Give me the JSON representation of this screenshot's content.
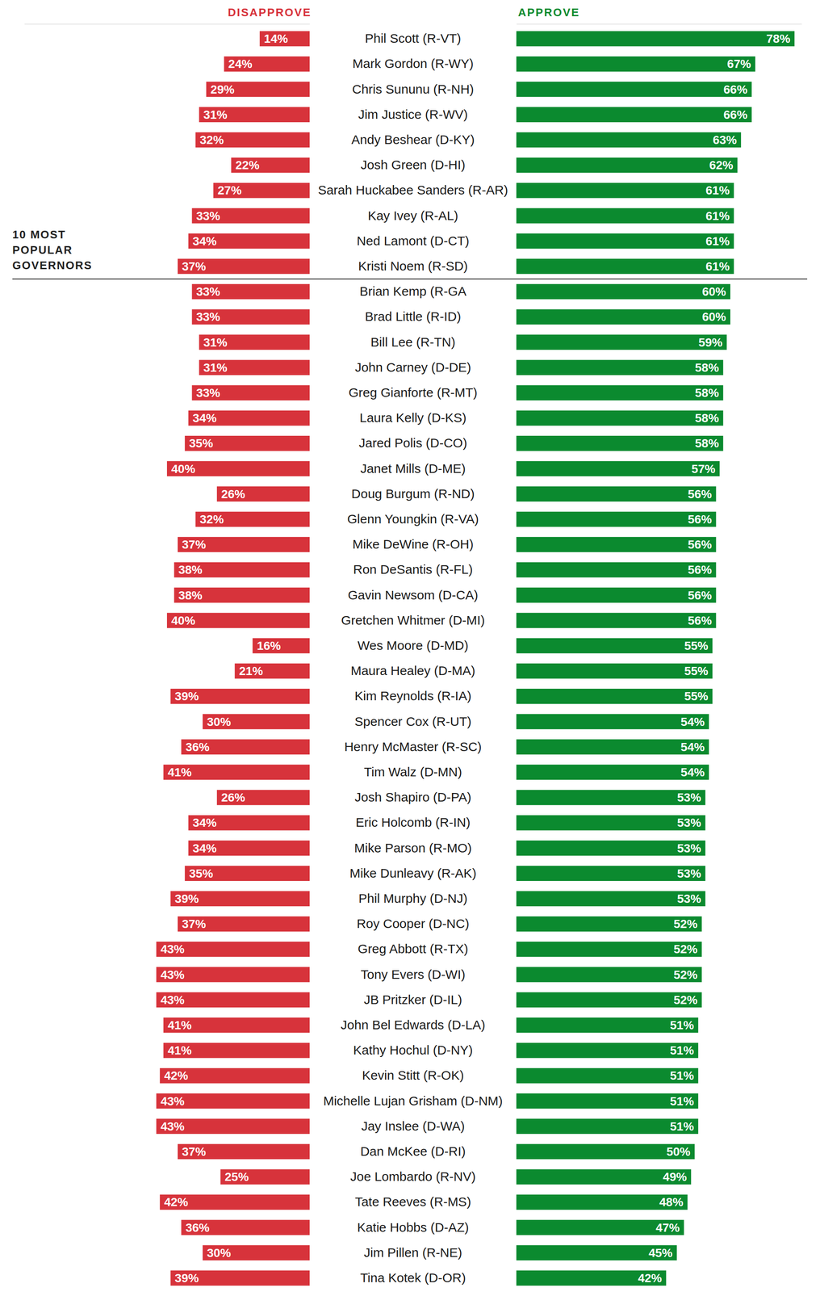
{
  "chart_data": {
    "type": "bar",
    "orientation": "horizontal",
    "data_labels": true,
    "tick_labels": "y",
    "grid": false,
    "annotation": [
      "10 MOST",
      "POPULAR",
      "GOVERNORS"
    ],
    "xlim": [
      0,
      80
    ],
    "xticks": [],
    "categories": [
      "Phil Scott (R-VT)",
      "Mark Gordon (R-WY)",
      "Chris Sununu (R-NH)",
      "Jim Justice (R-WV)",
      "Andy Beshear (D-KY)",
      "Josh Green (D-HI)",
      "Sarah Huckabee Sanders (R-AR)",
      "Kay Ivey (R-AL)",
      "Ned Lamont (D-CT)",
      "Kristi Noem (R-SD)",
      "Brian Kemp (R-GA",
      "Brad Little (R-ID)",
      "Bill Lee (R-TN)",
      "John Carney (D-DE)",
      "Greg Gianforte (R-MT)",
      "Laura Kelly (D-KS)",
      "Jared Polis (D-CO)",
      "Janet Mills (D-ME)",
      "Doug Burgum (R-ND)",
      "Glenn Youngkin (R-VA)",
      "Mike DeWine (R-OH)",
      "Ron DeSantis (R-FL)",
      "Gavin Newsom (D-CA)",
      "Gretchen Whitmer (D-MI)",
      "Wes Moore (D-MD)",
      "Maura Healey (D-MA)",
      "Kim Reynolds (R-IA)",
      "Spencer Cox (R-UT)",
      "Henry McMaster (R-SC)",
      "Tim Walz (D-MN)",
      "Josh Shapiro (D-PA)",
      "Eric Holcomb (R-IN)",
      "Mike Parson (R-MO)",
      "Mike Dunleavy (R-AK)",
      "Phil Murphy (D-NJ)",
      "Roy Cooper (D-NC)",
      "Greg Abbott (R-TX)",
      "Tony Evers (D-WI)",
      "JB Pritzker (D-IL)",
      "John Bel Edwards (D-LA)",
      "Kathy Hochul (D-NY)",
      "Kevin Stitt (R-OK)",
      "Michelle Lujan Grisham (D-NM)",
      "Jay Inslee (D-WA)",
      "Dan McKee (D-RI)",
      "Joe Lombardo (R-NV)",
      "Tate Reeves (R-MS)",
      "Katie Hobbs (D-AZ)",
      "Jim Pillen (R-NE)",
      "Tina Kotek (D-OR)"
    ],
    "series": [
      {
        "name": "DISAPPROVE",
        "color": "#d7333b",
        "values": [
          14,
          24,
          29,
          31,
          32,
          22,
          27,
          33,
          34,
          37,
          33,
          33,
          31,
          31,
          33,
          34,
          35,
          40,
          26,
          32,
          37,
          38,
          38,
          40,
          16,
          21,
          39,
          30,
          36,
          41,
          26,
          34,
          34,
          35,
          39,
          37,
          43,
          43,
          43,
          41,
          41,
          42,
          43,
          43,
          37,
          25,
          42,
          36,
          30,
          39
        ],
        "value_labels": [
          "14%",
          "24%",
          "29%",
          "31%",
          "32%",
          "22%",
          "27%",
          "33%",
          "34%",
          "37%",
          "33%",
          "33%",
          "31%",
          "31%",
          "33%",
          "34%",
          "35%",
          "40%",
          "26%",
          "32%",
          "37%",
          "38%",
          "38%",
          "40%",
          "16%",
          "21%",
          "39%",
          "30%",
          "36%",
          "41%",
          "26%",
          "34%",
          "34%",
          "35%",
          "39%",
          "37%",
          "43%",
          "43%",
          "43%",
          "41%",
          "41%",
          "42%",
          "43%",
          "43%",
          "37%",
          "25%",
          "42%",
          "36%",
          "30%",
          "39%"
        ]
      },
      {
        "name": "APPROVE",
        "color": "#0b8a2f",
        "values": [
          78,
          67,
          66,
          66,
          63,
          62,
          61,
          61,
          61,
          61,
          60,
          60,
          59,
          58,
          58,
          58,
          58,
          57,
          56,
          56,
          56,
          56,
          56,
          56,
          55,
          55,
          55,
          54,
          54,
          54,
          53,
          53,
          53,
          53,
          53,
          52,
          52,
          52,
          52,
          51,
          51,
          51,
          51,
          51,
          50,
          49,
          48,
          47,
          45,
          42
        ],
        "value_labels": [
          "78%",
          "67%",
          "66%",
          "66%",
          "63%",
          "62%",
          "61%",
          "61%",
          "61%",
          "61%",
          "60%",
          "60%",
          "59%",
          "58%",
          "58%",
          "58%",
          "58%",
          "57%",
          "56%",
          "56%",
          "56%",
          "56%",
          "56%",
          "56%",
          "55%",
          "55%",
          "55%",
          "54%",
          "54%",
          "54%",
          "53%",
          "53%",
          "53%",
          "53%",
          "53%",
          "52%",
          "52%",
          "52%",
          "52%",
          "51%",
          "51%",
          "51%",
          "51%",
          "51%",
          "50%",
          "49%",
          "48%",
          "47%",
          "45%",
          "42%"
        ]
      }
    ]
  }
}
